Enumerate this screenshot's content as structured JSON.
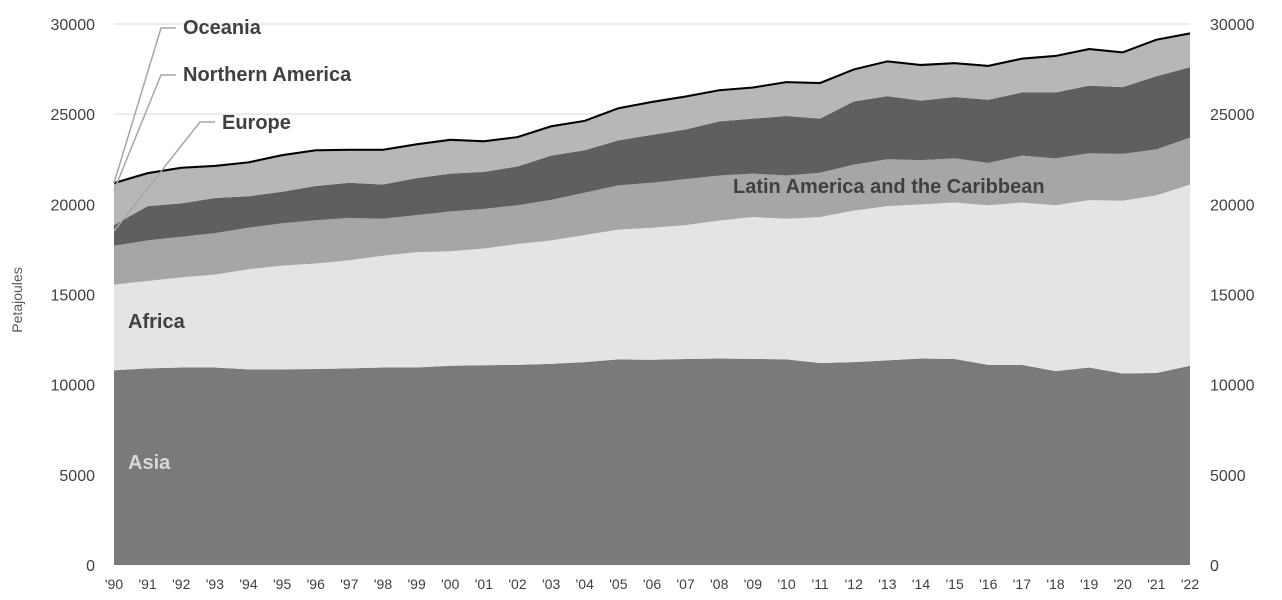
{
  "chart_data": {
    "type": "area",
    "stacked": true,
    "x": [
      "'90",
      "'91",
      "'92",
      "'93",
      "'94",
      "'95",
      "'96",
      "'97",
      "'98",
      "'99",
      "'00",
      "'01",
      "'02",
      "'03",
      "'04",
      "'05",
      "'06",
      "'07",
      "'08",
      "'09",
      "'10",
      "'11",
      "'12",
      "'13",
      "'14",
      "'15",
      "'16",
      "'17",
      "'18",
      "'19",
      "'20",
      "'21",
      "'22"
    ],
    "ylabel": "Petajoules",
    "ylim": [
      0,
      30000
    ],
    "yticks": [
      "0",
      "5000",
      "10000",
      "15000",
      "20000",
      "25000",
      "30000"
    ],
    "y2ticks": [
      "0",
      "5000",
      "10000",
      "15000",
      "20000",
      "25000",
      "30000"
    ],
    "grid": true,
    "series": [
      {
        "name": "Asia",
        "color": "#7a7a7a",
        "label_color": "#d9d9d9",
        "values": [
          10800,
          10900,
          10950,
          10950,
          10850,
          10850,
          10870,
          10900,
          10950,
          10950,
          11050,
          11080,
          11100,
          11150,
          11250,
          11400,
          11380,
          11420,
          11450,
          11430,
          11400,
          11200,
          11250,
          11350,
          11450,
          11420,
          11100,
          11100,
          10750,
          10950,
          10620,
          10650,
          11050
        ]
      },
      {
        "name": "Africa",
        "color": "#e4e4e4",
        "label_color": "#404040",
        "values": [
          4750,
          4850,
          5000,
          5150,
          5550,
          5750,
          5850,
          6000,
          6200,
          6400,
          6350,
          6470,
          6700,
          6850,
          7050,
          7200,
          7320,
          7430,
          7650,
          7870,
          7800,
          8100,
          8400,
          8550,
          8550,
          8680,
          8850,
          9000,
          9200,
          9280,
          9580,
          9850,
          10050
        ]
      },
      {
        "name": "Latin America and the Caribbean",
        "color": "#a6a6a6",
        "label_color": "#404040",
        "values": [
          2150,
          2250,
          2250,
          2300,
          2300,
          2350,
          2400,
          2350,
          2050,
          2050,
          2200,
          2200,
          2150,
          2250,
          2350,
          2450,
          2500,
          2550,
          2500,
          2400,
          2400,
          2450,
          2550,
          2600,
          2450,
          2450,
          2350,
          2600,
          2600,
          2600,
          2600,
          2550,
          2600
        ]
      },
      {
        "name": "Europe",
        "color": "#5f5f5f",
        "label_color": "#404040",
        "values": [
          1150,
          1900,
          1850,
          1950,
          1750,
          1750,
          1900,
          1950,
          1900,
          2050,
          2100,
          2050,
          2150,
          2450,
          2350,
          2500,
          2650,
          2750,
          3000,
          3050,
          3300,
          3000,
          3500,
          3500,
          3300,
          3400,
          3500,
          3500,
          3650,
          3750,
          3700,
          4050,
          3900
        ]
      },
      {
        "name": "Northern America",
        "color": "#b7b7b7",
        "label_color": "#404040",
        "values": [
          2250,
          1750,
          1900,
          1700,
          1800,
          1950,
          1900,
          1750,
          1850,
          1800,
          1800,
          1620,
          1550,
          1550,
          1550,
          1700,
          1750,
          1750,
          1650,
          1650,
          1800,
          1900,
          1700,
          1850,
          1900,
          1800,
          1800,
          1800,
          1950,
          1950,
          1850,
          1950,
          1800
        ]
      },
      {
        "name": "Oceania",
        "color": "#8c8c8c",
        "label_color": "#404040",
        "values": [
          80,
          80,
          80,
          80,
          80,
          80,
          80,
          80,
          80,
          80,
          80,
          80,
          80,
          80,
          80,
          80,
          80,
          80,
          80,
          80,
          80,
          80,
          80,
          80,
          80,
          80,
          80,
          80,
          80,
          80,
          80,
          80,
          80
        ]
      }
    ],
    "labels": {
      "asia": "Asia",
      "africa": "Africa",
      "latam": "Latin America and the Caribbean",
      "europe": "Europe",
      "north_america": "Northern America",
      "oceania": "Oceania"
    }
  }
}
